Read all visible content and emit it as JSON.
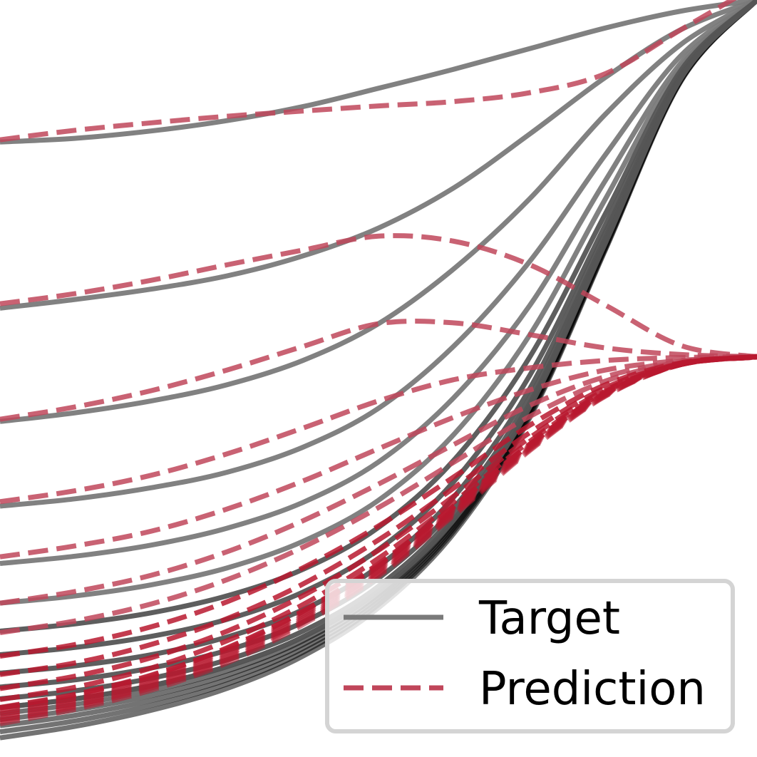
{
  "chart_data": {
    "type": "line",
    "title": "",
    "xlabel": "",
    "ylabel": "",
    "xlim": [
      0,
      1
    ],
    "ylim": [
      0,
      1
    ],
    "grid": false,
    "axes_visible": false,
    "legend": {
      "placement": "bottom-right",
      "entries": [
        {
          "label": "Target",
          "style": "solid",
          "color": "#7a7a7a"
        },
        {
          "label": "Prediction",
          "style": "dashed",
          "color": "#c0465a"
        }
      ]
    },
    "colors": {
      "target": "#7a7a7a",
      "target_dense": "#000000",
      "prediction": "#c0465a",
      "prediction_dense": "#b8192f"
    },
    "target_series": [
      {
        "values": [
          [
            0,
            0.807
          ],
          [
            0.1,
            0.812
          ],
          [
            0.2,
            0.822
          ],
          [
            0.3,
            0.836
          ],
          [
            0.4,
            0.855
          ],
          [
            0.5,
            0.88
          ],
          [
            0.6,
            0.906
          ],
          [
            0.7,
            0.934
          ],
          [
            0.8,
            0.962
          ],
          [
            0.9,
            0.985
          ],
          [
            1,
            1
          ]
        ]
      },
      {
        "values": [
          [
            0,
            0.581
          ],
          [
            0.1,
            0.593
          ],
          [
            0.2,
            0.607
          ],
          [
            0.3,
            0.625
          ],
          [
            0.4,
            0.652
          ],
          [
            0.5,
            0.69
          ],
          [
            0.6,
            0.745
          ],
          [
            0.7,
            0.818
          ],
          [
            0.8,
            0.895
          ],
          [
            0.9,
            0.96
          ],
          [
            1,
            1
          ]
        ]
      },
      {
        "values": [
          [
            0,
            0.427
          ],
          [
            0.1,
            0.439
          ],
          [
            0.2,
            0.455
          ],
          [
            0.3,
            0.477
          ],
          [
            0.4,
            0.51
          ],
          [
            0.5,
            0.56
          ],
          [
            0.6,
            0.635
          ],
          [
            0.7,
            0.73
          ],
          [
            0.8,
            0.845
          ],
          [
            0.9,
            0.94
          ],
          [
            1,
            1
          ]
        ]
      },
      {
        "values": [
          [
            0,
            0.312
          ],
          [
            0.1,
            0.322
          ],
          [
            0.2,
            0.337
          ],
          [
            0.3,
            0.358
          ],
          [
            0.4,
            0.392
          ],
          [
            0.5,
            0.445
          ],
          [
            0.6,
            0.53
          ],
          [
            0.7,
            0.645
          ],
          [
            0.8,
            0.79
          ],
          [
            0.9,
            0.925
          ],
          [
            1,
            1
          ]
        ]
      },
      {
        "values": [
          [
            0,
            0.234
          ],
          [
            0.1,
            0.244
          ],
          [
            0.2,
            0.259
          ],
          [
            0.3,
            0.282
          ],
          [
            0.4,
            0.317
          ],
          [
            0.5,
            0.372
          ],
          [
            0.6,
            0.46
          ],
          [
            0.7,
            0.585
          ],
          [
            0.8,
            0.755
          ],
          [
            0.9,
            0.915
          ],
          [
            1,
            1
          ]
        ]
      },
      {
        "values": [
          [
            0,
            0.18
          ],
          [
            0.1,
            0.19
          ],
          [
            0.2,
            0.205
          ],
          [
            0.3,
            0.228
          ],
          [
            0.4,
            0.264
          ],
          [
            0.5,
            0.32
          ],
          [
            0.6,
            0.41
          ],
          [
            0.7,
            0.545
          ],
          [
            0.8,
            0.73
          ],
          [
            0.9,
            0.91
          ],
          [
            1,
            1
          ]
        ]
      },
      {
        "values": [
          [
            0,
            0.142
          ],
          [
            0.1,
            0.152
          ],
          [
            0.2,
            0.167
          ],
          [
            0.3,
            0.19
          ],
          [
            0.4,
            0.226
          ],
          [
            0.5,
            0.283
          ],
          [
            0.6,
            0.375
          ],
          [
            0.7,
            0.515
          ],
          [
            0.8,
            0.71
          ],
          [
            0.9,
            0.905
          ],
          [
            1,
            1
          ]
        ]
      },
      {
        "values": [
          [
            0,
            0.11
          ],
          [
            0.1,
            0.12
          ],
          [
            0.2,
            0.135
          ],
          [
            0.3,
            0.158
          ],
          [
            0.4,
            0.195
          ],
          [
            0.5,
            0.253
          ],
          [
            0.6,
            0.346
          ],
          [
            0.7,
            0.49
          ],
          [
            0.8,
            0.695
          ],
          [
            0.9,
            0.9
          ],
          [
            1,
            1
          ]
        ]
      },
      {
        "values": [
          [
            0,
            0.085
          ],
          [
            0.1,
            0.095
          ],
          [
            0.2,
            0.11
          ],
          [
            0.3,
            0.134
          ],
          [
            0.4,
            0.171
          ],
          [
            0.5,
            0.23
          ],
          [
            0.6,
            0.325
          ],
          [
            0.7,
            0.472
          ],
          [
            0.8,
            0.685
          ],
          [
            0.9,
            0.898
          ],
          [
            1,
            1
          ]
        ]
      },
      {
        "values": [
          [
            0,
            0.066
          ],
          [
            0.1,
            0.076
          ],
          [
            0.2,
            0.092
          ],
          [
            0.3,
            0.116
          ],
          [
            0.4,
            0.154
          ],
          [
            0.5,
            0.214
          ],
          [
            0.6,
            0.31
          ],
          [
            0.7,
            0.46
          ],
          [
            0.8,
            0.678
          ],
          [
            0.9,
            0.896
          ],
          [
            1,
            1
          ]
        ]
      },
      {
        "values": [
          [
            0,
            0.05
          ],
          [
            0.1,
            0.061
          ],
          [
            0.2,
            0.078
          ],
          [
            0.3,
            0.103
          ],
          [
            0.4,
            0.142
          ],
          [
            0.5,
            0.203
          ],
          [
            0.6,
            0.3
          ],
          [
            0.7,
            0.452
          ],
          [
            0.8,
            0.673
          ],
          [
            0.9,
            0.895
          ],
          [
            1,
            1
          ]
        ]
      },
      {
        "values": [
          [
            0,
            0.038
          ],
          [
            0.1,
            0.05
          ],
          [
            0.2,
            0.068
          ],
          [
            0.3,
            0.094
          ],
          [
            0.4,
            0.134
          ],
          [
            0.5,
            0.196
          ],
          [
            0.6,
            0.294
          ],
          [
            0.7,
            0.447
          ],
          [
            0.8,
            0.67
          ],
          [
            0.9,
            0.894
          ],
          [
            1,
            1
          ]
        ]
      }
    ],
    "prediction_series": [
      {
        "values": [
          [
            0,
            0.81
          ],
          [
            0.1,
            0.823
          ],
          [
            0.2,
            0.833
          ],
          [
            0.3,
            0.842
          ],
          [
            0.4,
            0.849
          ],
          [
            0.5,
            0.856
          ],
          [
            0.6,
            0.862
          ],
          [
            0.7,
            0.874
          ],
          [
            0.8,
            0.9
          ],
          [
            0.9,
            0.96
          ],
          [
            1,
            1.02
          ]
        ]
      },
      {
        "values": [
          [
            0,
            0.587
          ],
          [
            0.1,
            0.601
          ],
          [
            0.2,
            0.619
          ],
          [
            0.3,
            0.64
          ],
          [
            0.4,
            0.66
          ],
          [
            0.5,
            0.679
          ],
          [
            0.6,
            0.672
          ],
          [
            0.7,
            0.64
          ],
          [
            0.8,
            0.585
          ],
          [
            0.9,
            0.53
          ],
          [
            1,
            0.515
          ]
        ]
      },
      {
        "values": [
          [
            0,
            0.43
          ],
          [
            0.1,
            0.447
          ],
          [
            0.2,
            0.469
          ],
          [
            0.3,
            0.497
          ],
          [
            0.4,
            0.529
          ],
          [
            0.5,
            0.56
          ],
          [
            0.6,
            0.561
          ],
          [
            0.7,
            0.545
          ],
          [
            0.8,
            0.527
          ],
          [
            0.9,
            0.518
          ],
          [
            1,
            0.515
          ]
        ]
      },
      {
        "values": [
          [
            0,
            0.318
          ],
          [
            0.1,
            0.333
          ],
          [
            0.2,
            0.354
          ],
          [
            0.3,
            0.383
          ],
          [
            0.4,
            0.418
          ],
          [
            0.5,
            0.455
          ],
          [
            0.6,
            0.484
          ],
          [
            0.7,
            0.5
          ],
          [
            0.8,
            0.51
          ],
          [
            0.9,
            0.514
          ],
          [
            1,
            0.515
          ]
        ]
      },
      {
        "values": [
          [
            0,
            0.243
          ],
          [
            0.1,
            0.258
          ],
          [
            0.2,
            0.278
          ],
          [
            0.3,
            0.308
          ],
          [
            0.4,
            0.346
          ],
          [
            0.5,
            0.39
          ],
          [
            0.6,
            0.433
          ],
          [
            0.7,
            0.47
          ],
          [
            0.8,
            0.497
          ],
          [
            0.9,
            0.51
          ],
          [
            1,
            0.515
          ]
        ]
      },
      {
        "values": [
          [
            0,
            0.18
          ],
          [
            0.1,
            0.196
          ],
          [
            0.2,
            0.218
          ],
          [
            0.3,
            0.25
          ],
          [
            0.4,
            0.292
          ],
          [
            0.5,
            0.342
          ],
          [
            0.6,
            0.396
          ],
          [
            0.7,
            0.449
          ],
          [
            0.8,
            0.488
          ],
          [
            0.9,
            0.509
          ],
          [
            1,
            0.515
          ]
        ]
      },
      {
        "values": [
          [
            0,
            0.14
          ],
          [
            0.1,
            0.156
          ],
          [
            0.2,
            0.179
          ],
          [
            0.3,
            0.212
          ],
          [
            0.4,
            0.256
          ],
          [
            0.5,
            0.31
          ],
          [
            0.6,
            0.372
          ],
          [
            0.7,
            0.434
          ],
          [
            0.8,
            0.482
          ],
          [
            0.9,
            0.508
          ],
          [
            1,
            0.515
          ]
        ]
      },
      {
        "values": [
          [
            0,
            0.108
          ],
          [
            0.1,
            0.124
          ],
          [
            0.2,
            0.148
          ],
          [
            0.3,
            0.182
          ],
          [
            0.4,
            0.228
          ],
          [
            0.5,
            0.285
          ],
          [
            0.6,
            0.352
          ],
          [
            0.7,
            0.422
          ],
          [
            0.8,
            0.477
          ],
          [
            0.9,
            0.507
          ],
          [
            1,
            0.515
          ]
        ]
      },
      {
        "values": [
          [
            0,
            0.083
          ],
          [
            0.1,
            0.099
          ],
          [
            0.2,
            0.124
          ],
          [
            0.3,
            0.159
          ],
          [
            0.4,
            0.206
          ],
          [
            0.5,
            0.266
          ],
          [
            0.6,
            0.337
          ],
          [
            0.7,
            0.412
          ],
          [
            0.8,
            0.473
          ],
          [
            0.9,
            0.506
          ],
          [
            1,
            0.515
          ]
        ]
      },
      {
        "values": [
          [
            0,
            0.064
          ],
          [
            0.1,
            0.081
          ],
          [
            0.2,
            0.106
          ],
          [
            0.3,
            0.142
          ],
          [
            0.4,
            0.19
          ],
          [
            0.5,
            0.252
          ],
          [
            0.6,
            0.326
          ],
          [
            0.7,
            0.405
          ],
          [
            0.8,
            0.47
          ],
          [
            0.9,
            0.505
          ],
          [
            1,
            0.515
          ]
        ]
      },
      {
        "values": [
          [
            0,
            0.049
          ],
          [
            0.1,
            0.066
          ],
          [
            0.2,
            0.092
          ],
          [
            0.3,
            0.129
          ],
          [
            0.4,
            0.178
          ],
          [
            0.5,
            0.241
          ],
          [
            0.6,
            0.318
          ],
          [
            0.7,
            0.4
          ],
          [
            0.8,
            0.468
          ],
          [
            0.9,
            0.505
          ],
          [
            1,
            0.515
          ]
        ]
      },
      {
        "values": [
          [
            0,
            0.038
          ],
          [
            0.1,
            0.056
          ],
          [
            0.2,
            0.082
          ],
          [
            0.3,
            0.119
          ],
          [
            0.4,
            0.169
          ],
          [
            0.5,
            0.233
          ],
          [
            0.6,
            0.312
          ],
          [
            0.7,
            0.396
          ],
          [
            0.8,
            0.466
          ],
          [
            0.9,
            0.505
          ],
          [
            1,
            0.515
          ]
        ]
      }
    ]
  }
}
